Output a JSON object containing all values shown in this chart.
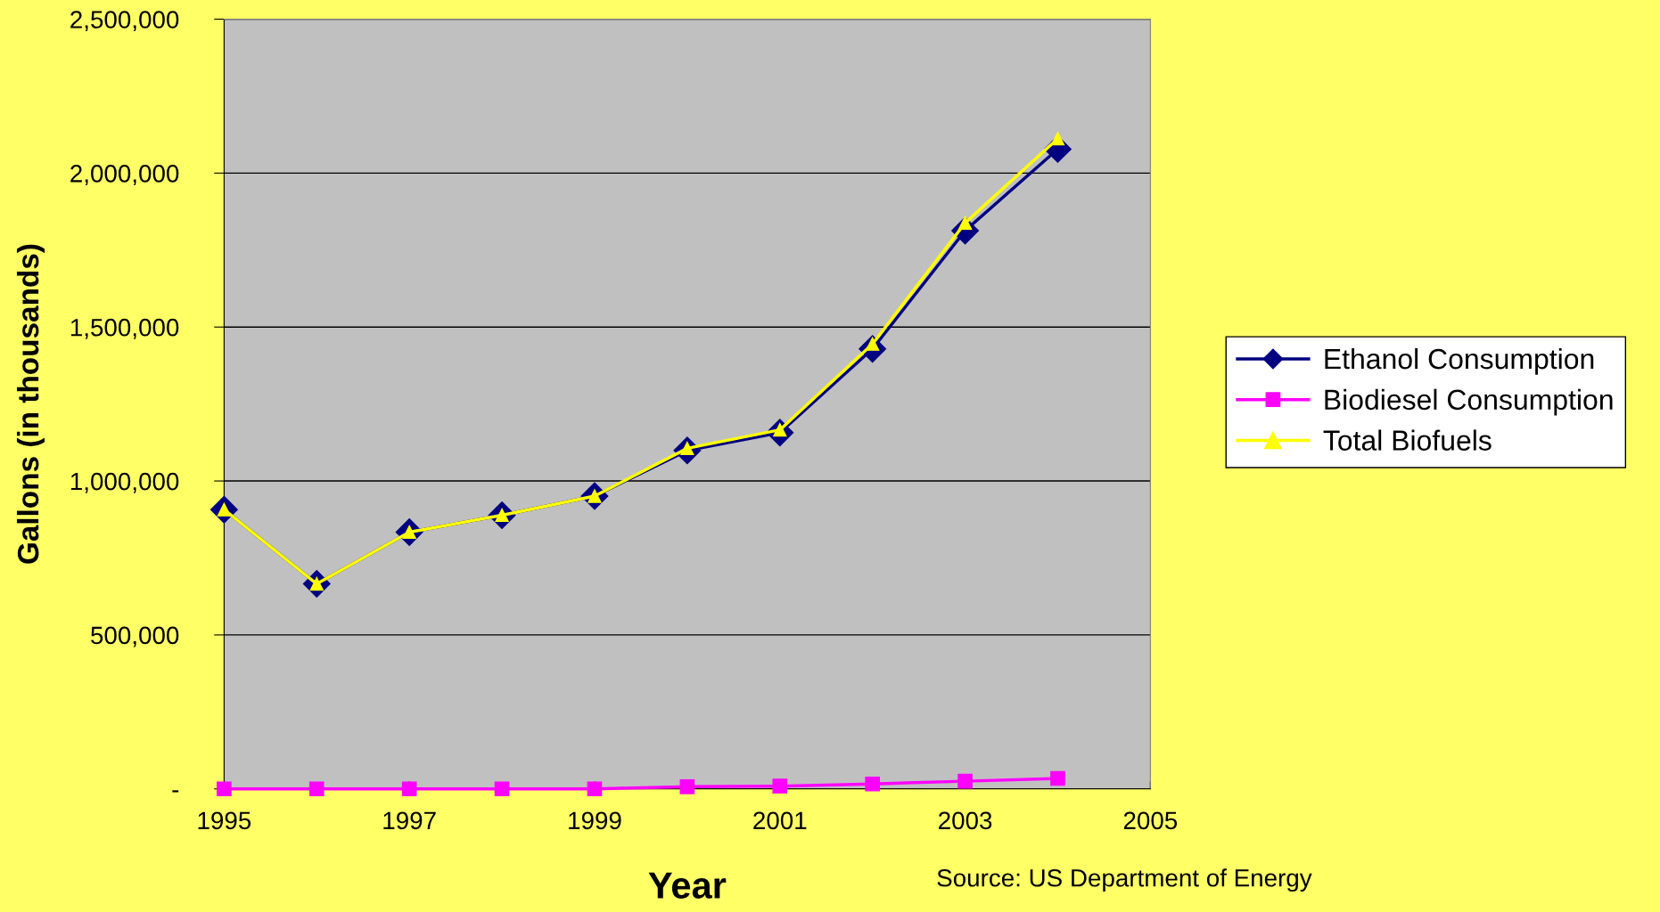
{
  "chart_data": {
    "type": "line",
    "xlabel": "Year",
    "ylabel": "Gallons (in thousands)",
    "x": [
      1995,
      1996,
      1997,
      1998,
      1999,
      2000,
      2001,
      2002,
      2003,
      2004
    ],
    "series": [
      {
        "name": "Ethanol Consumption",
        "color": "#000080",
        "marker": "diamond",
        "values": [
          907000,
          666000,
          834000,
          889000,
          951000,
          1099000,
          1157000,
          1429000,
          1813000,
          2078000
        ]
      },
      {
        "name": "Biodiesel Consumption",
        "color": "#ff00ff",
        "marker": "square",
        "values": [
          0,
          0,
          0,
          0,
          0,
          7000,
          9000,
          16000,
          25000,
          34000
        ]
      },
      {
        "name": "Total Biofuels",
        "color": "#ffff00",
        "marker": "triangle",
        "values": [
          907000,
          666000,
          834000,
          889000,
          951000,
          1106000,
          1166000,
          1445000,
          1838000,
          2112000
        ]
      }
    ],
    "xlim": [
      1995,
      2005
    ],
    "xticks": [
      1995,
      1997,
      1999,
      2001,
      2003,
      2005
    ],
    "ylim": [
      0,
      2500000
    ],
    "yticks": [
      {
        "value": 0,
        "label": "-"
      },
      {
        "value": 500000,
        "label": "500,000"
      },
      {
        "value": 1000000,
        "label": "1,000,000"
      },
      {
        "value": 1500000,
        "label": "1,500,000"
      },
      {
        "value": 2000000,
        "label": "2,000,000"
      },
      {
        "value": 2500000,
        "label": "2,500,000"
      }
    ],
    "grid": "y",
    "legend": "right",
    "annotations": [
      "Source: US Department of Energy"
    ]
  }
}
